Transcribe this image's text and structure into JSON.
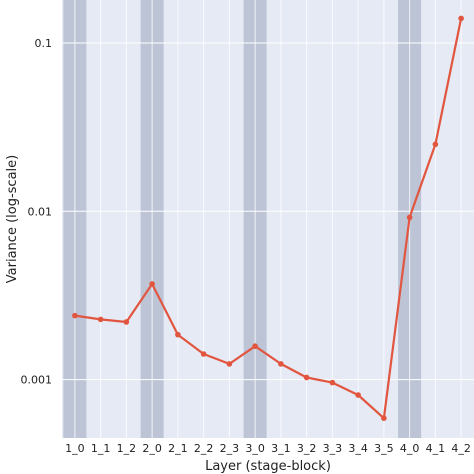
{
  "colors": {
    "plot_background": "#e5eaf5",
    "grid": "#ffffff",
    "highlight_band": "#bcc4d6",
    "line": "#e2553f"
  },
  "chart_data": {
    "type": "line",
    "title": "",
    "xlabel": "Layer (stage-block)",
    "ylabel": "Variance (log-scale)",
    "yscale": "log",
    "ylim": [
      0.00045,
      0.18
    ],
    "y_ticks": [
      0.001,
      0.01,
      0.1
    ],
    "y_tick_labels": [
      "0.001",
      "0.01",
      "0.1"
    ],
    "grid": true,
    "legend": "none",
    "highlighted_categories": [
      "1_0",
      "2_0",
      "3_0",
      "4_0"
    ],
    "categories": [
      "1_0",
      "1_1",
      "1_2",
      "2_0",
      "2_1",
      "2_2",
      "2_3",
      "3_0",
      "3_1",
      "3_2",
      "3_3",
      "3_4",
      "3_5",
      "4_0",
      "4_1",
      "4_2"
    ],
    "series": [
      {
        "values": [
          0.0024,
          0.00228,
          0.0022,
          0.0037,
          0.00185,
          0.00142,
          0.00124,
          0.00158,
          0.00124,
          0.00103,
          0.00096,
          0.00081,
          0.00059,
          0.0092,
          0.025,
          0.14
        ]
      }
    ]
  }
}
